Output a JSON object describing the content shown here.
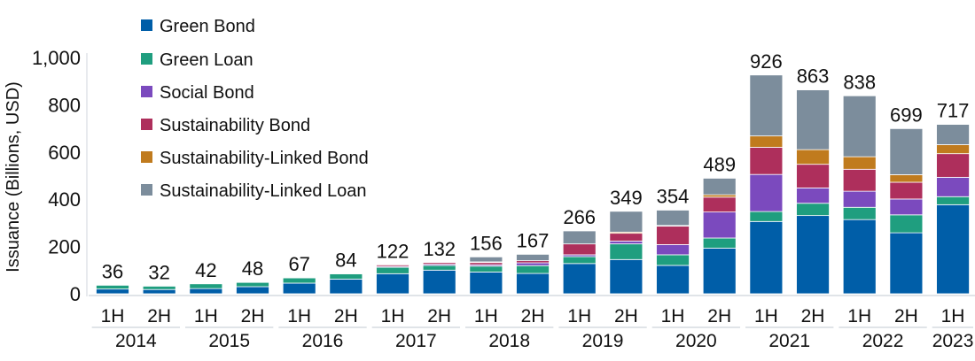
{
  "chart_data": {
    "type": "bar",
    "stacked": true,
    "title": "",
    "xlabel": "",
    "ylabel": "Issuance (Billions, USD)",
    "ylim": [
      0,
      1000
    ],
    "yticks": [
      0,
      200,
      400,
      600,
      800,
      1000
    ],
    "ytick_labels": [
      "0",
      "200",
      "400",
      "600",
      "800",
      "1,000"
    ],
    "grid": false,
    "legend_position": "top-left",
    "categories": [
      "1H",
      "2H",
      "1H",
      "2H",
      "1H",
      "2H",
      "1H",
      "2H",
      "1H",
      "2H",
      "1H",
      "2H",
      "1H",
      "2H",
      "1H",
      "2H",
      "1H",
      "2H",
      "1H"
    ],
    "years": [
      {
        "label": "2014",
        "span": 2
      },
      {
        "label": "2015",
        "span": 2
      },
      {
        "label": "2016",
        "span": 2
      },
      {
        "label": "2017",
        "span": 2
      },
      {
        "label": "2018",
        "span": 2
      },
      {
        "label": "2019",
        "span": 2
      },
      {
        "label": "2020",
        "span": 2
      },
      {
        "label": "2021",
        "span": 2
      },
      {
        "label": "2022",
        "span": 2
      },
      {
        "label": "2023",
        "span": 1
      }
    ],
    "totals": [
      36,
      32,
      42,
      48,
      67,
      84,
      122,
      132,
      156,
      167,
      266,
      349,
      354,
      489,
      926,
      863,
      838,
      699,
      717
    ],
    "series": [
      {
        "name": "Green Bond",
        "color": "#005EA8",
        "values": [
          20,
          18,
          22,
          30,
          45,
          62,
          85,
          100,
          92,
          86,
          128,
          145,
          120,
          193,
          306,
          331,
          314,
          258,
          377
        ]
      },
      {
        "name": "Green Loan",
        "color": "#1F9E7F",
        "values": [
          16,
          14,
          20,
          18,
          22,
          22,
          27,
          20,
          25,
          33,
          29,
          66,
          45,
          43,
          42,
          52,
          52,
          76,
          34
        ]
      },
      {
        "name": "Social Bond",
        "color": "#7B4ABE",
        "values": [
          0,
          0,
          0,
          0,
          0,
          0,
          4,
          5,
          6,
          12,
          8,
          12,
          43,
          110,
          157,
          65,
          68,
          67,
          82
        ]
      },
      {
        "name": "Sustainability Bond",
        "color": "#AE2F5C",
        "values": [
          0,
          0,
          0,
          0,
          0,
          0,
          6,
          7,
          10,
          9,
          46,
          33,
          79,
          63,
          115,
          100,
          93,
          71,
          100
        ]
      },
      {
        "name": "Sustainability-Linked Bond",
        "color": "#C07B1E",
        "values": [
          0,
          0,
          0,
          0,
          0,
          0,
          0,
          0,
          2,
          0,
          0,
          5,
          2,
          10,
          48,
          62,
          53,
          32,
          38
        ]
      },
      {
        "name": "Sustainability-Linked Loan",
        "color": "#7C8D9C",
        "values": [
          0,
          0,
          0,
          0,
          0,
          0,
          0,
          0,
          21,
          27,
          55,
          88,
          65,
          70,
          258,
          253,
          258,
          195,
          86
        ]
      }
    ]
  }
}
